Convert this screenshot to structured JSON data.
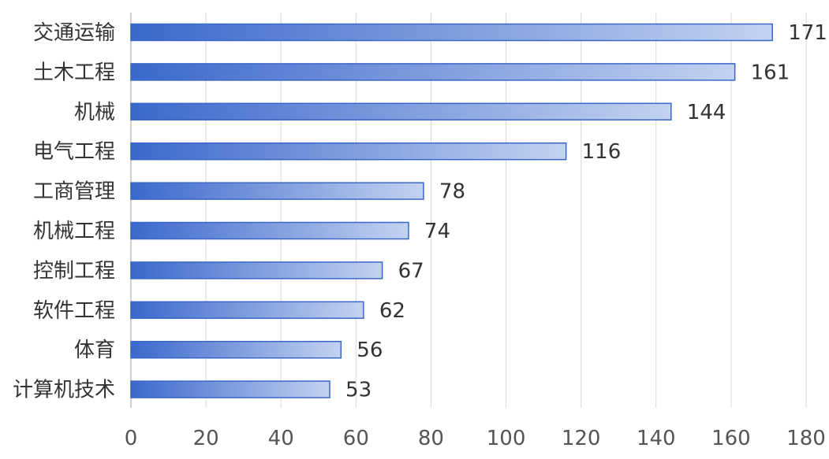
{
  "chart_data": {
    "type": "bar",
    "orientation": "horizontal",
    "categories": [
      "交通运输",
      "土木工程",
      "机械",
      "电气工程",
      "工商管理",
      "机械工程",
      "控制工程",
      "软件工程",
      "体育",
      "计算机技术"
    ],
    "values": [
      171,
      161,
      144,
      116,
      78,
      74,
      67,
      62,
      56,
      53
    ],
    "xlim": [
      0,
      180
    ],
    "x_ticks": [
      0,
      20,
      40,
      60,
      80,
      100,
      120,
      140,
      160,
      180
    ],
    "title": "",
    "xlabel": "",
    "ylabel": "",
    "grid": "vertical",
    "legend": "none",
    "data_labels": true
  },
  "colors": {
    "bar_gradient_start": "#3a68cc",
    "bar_gradient_end": "#c3d2f0",
    "bar_border": "#3a66c8",
    "text": "#333333",
    "grid": "#d9d9d9"
  }
}
